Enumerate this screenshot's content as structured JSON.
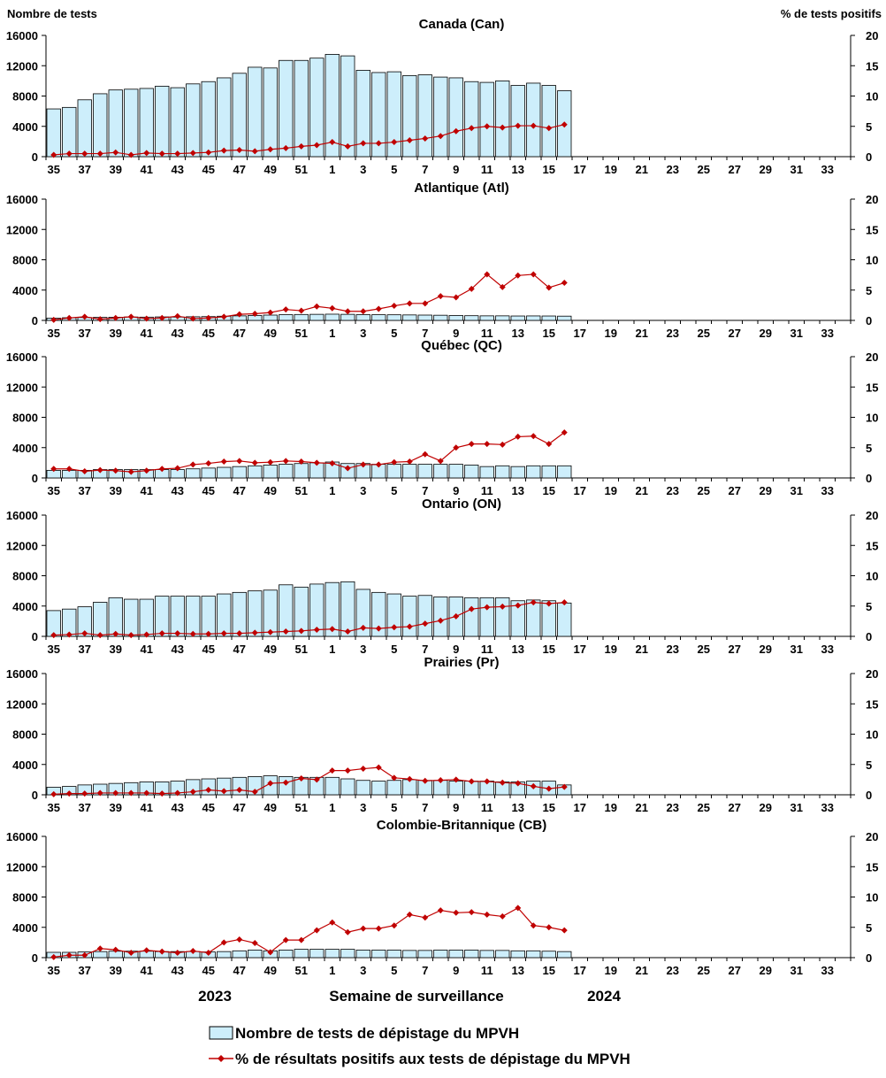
{
  "y_left_label": "Nombre de tests",
  "y_right_label": "% de tests positifs",
  "x_label": "Semaine de surveillance",
  "year_labels": [
    "2023",
    "2024"
  ],
  "legend": {
    "bar": "Nombre de tests de dépistage du MPVH",
    "line": "% de résultats positifs aux tests de dépistage du MPVH"
  },
  "colors": {
    "bar_fill": "#cdeefb",
    "bar_stroke": "#000000",
    "line": "#c00000"
  },
  "chart_data": [
    {
      "type": "bar+line",
      "title": "Canada (Can)",
      "weeks": [
        35,
        36,
        37,
        38,
        39,
        40,
        41,
        42,
        43,
        44,
        45,
        46,
        47,
        48,
        49,
        50,
        51,
        52,
        1,
        2,
        3,
        4,
        5,
        6,
        7,
        8,
        9,
        10,
        11,
        12,
        13,
        14,
        15,
        16,
        17,
        18,
        19,
        20,
        21,
        22,
        23,
        24,
        25,
        26,
        27,
        28,
        29,
        30,
        31,
        32,
        33,
        34
      ],
      "x_tick_labels": [
        "35",
        "37",
        "39",
        "41",
        "43",
        "45",
        "47",
        "49",
        "51",
        "1",
        "3",
        "5",
        "7",
        "9",
        "11",
        "13",
        "15",
        "17",
        "19",
        "21",
        "23",
        "25",
        "27",
        "29",
        "31",
        "33"
      ],
      "ylim_left": [
        0,
        16000
      ],
      "yticks_left": [
        0,
        4000,
        8000,
        12000,
        16000
      ],
      "ylim_right": [
        0,
        20
      ],
      "yticks_right": [
        0,
        5,
        10,
        15,
        20
      ],
      "tests": [
        6300,
        6500,
        7500,
        8300,
        8800,
        8900,
        9000,
        9300,
        9100,
        9600,
        9900,
        10400,
        11000,
        11800,
        11700,
        12700,
        12700,
        13000,
        13500,
        13300,
        11400,
        11100,
        11200,
        10700,
        10800,
        10500,
        10400,
        9900,
        9800,
        10000,
        9400,
        9700,
        9400,
        8700
      ],
      "percent_positive": [
        0.3,
        0.5,
        0.5,
        0.5,
        0.7,
        0.3,
        0.6,
        0.5,
        0.5,
        0.6,
        0.7,
        1.0,
        1.1,
        0.9,
        1.2,
        1.4,
        1.7,
        1.9,
        2.4,
        1.7,
        2.2,
        2.2,
        2.4,
        2.7,
        3.0,
        3.4,
        4.2,
        4.7,
        5.0,
        4.8,
        5.1,
        5.1,
        4.7,
        5.3
      ]
    },
    {
      "type": "bar+line",
      "title": "Atlantique (Atl)",
      "weeks": [
        35,
        36,
        37,
        38,
        39,
        40,
        41,
        42,
        43,
        44,
        45,
        46,
        47,
        48,
        49,
        50,
        51,
        52,
        1,
        2,
        3,
        4,
        5,
        6,
        7,
        8,
        9,
        10,
        11,
        12,
        13,
        14,
        15,
        16,
        17,
        18,
        19,
        20,
        21,
        22,
        23,
        24,
        25,
        26,
        27,
        28,
        29,
        30,
        31,
        32,
        33,
        34
      ],
      "x_tick_labels": [
        "35",
        "37",
        "39",
        "41",
        "43",
        "45",
        "47",
        "49",
        "51",
        "1",
        "3",
        "5",
        "7",
        "9",
        "11",
        "13",
        "15",
        "17",
        "19",
        "21",
        "23",
        "25",
        "27",
        "29",
        "31",
        "33"
      ],
      "ylim_left": [
        0,
        16000
      ],
      "yticks_left": [
        0,
        4000,
        8000,
        12000,
        16000
      ],
      "ylim_right": [
        0,
        20
      ],
      "yticks_right": [
        0,
        5,
        10,
        15,
        20
      ],
      "tests": [
        300,
        350,
        380,
        400,
        420,
        450,
        430,
        460,
        440,
        480,
        500,
        550,
        600,
        650,
        700,
        750,
        780,
        800,
        820,
        800,
        760,
        750,
        740,
        720,
        700,
        680,
        650,
        620,
        600,
        600,
        580,
        590,
        580,
        560
      ],
      "percent_positive": [
        0.1,
        0.4,
        0.6,
        0.2,
        0.4,
        0.6,
        0.3,
        0.4,
        0.7,
        0.3,
        0.4,
        0.6,
        1.0,
        1.1,
        1.3,
        1.8,
        1.6,
        2.3,
        2.0,
        1.5,
        1.5,
        1.9,
        2.4,
        2.8,
        2.8,
        4.0,
        3.8,
        5.2,
        7.6,
        5.5,
        7.4,
        7.6,
        5.4,
        6.2
      ]
    },
    {
      "type": "bar+line",
      "title": "Québec (QC)",
      "weeks": [
        35,
        36,
        37,
        38,
        39,
        40,
        41,
        42,
        43,
        44,
        45,
        46,
        47,
        48,
        49,
        50,
        51,
        52,
        1,
        2,
        3,
        4,
        5,
        6,
        7,
        8,
        9,
        10,
        11,
        12,
        13,
        14,
        15,
        16,
        17,
        18,
        19,
        20,
        21,
        22,
        23,
        24,
        25,
        26,
        27,
        28,
        29,
        30,
        31,
        32,
        33,
        34
      ],
      "x_tick_labels": [
        "35",
        "37",
        "39",
        "41",
        "43",
        "45",
        "47",
        "49",
        "51",
        "1",
        "3",
        "5",
        "7",
        "9",
        "11",
        "13",
        "15",
        "17",
        "19",
        "21",
        "23",
        "25",
        "27",
        "29",
        "31",
        "33"
      ],
      "ylim_left": [
        0,
        16000
      ],
      "yticks_left": [
        0,
        4000,
        8000,
        12000,
        16000
      ],
      "ylim_right": [
        0,
        20
      ],
      "yticks_right": [
        0,
        5,
        10,
        15,
        20
      ],
      "tests": [
        1000,
        1000,
        1000,
        1100,
        1100,
        1100,
        1100,
        1100,
        1100,
        1200,
        1300,
        1400,
        1500,
        1600,
        1700,
        1800,
        1900,
        2000,
        2100,
        1900,
        1900,
        1800,
        1800,
        1800,
        1800,
        1800,
        1800,
        1700,
        1500,
        1600,
        1500,
        1600,
        1600,
        1600
      ],
      "percent_positive": [
        1.5,
        1.5,
        1.1,
        1.3,
        1.2,
        1.0,
        1.2,
        1.5,
        1.6,
        2.2,
        2.4,
        2.7,
        2.8,
        2.5,
        2.6,
        2.8,
        2.7,
        2.5,
        2.4,
        1.6,
        2.2,
        2.2,
        2.6,
        2.7,
        3.9,
        2.8,
        5.0,
        5.6,
        5.6,
        5.5,
        6.8,
        6.9,
        5.6,
        7.5
      ]
    },
    {
      "type": "bar+line",
      "title": "Ontario (ON)",
      "weeks": [
        35,
        36,
        37,
        38,
        39,
        40,
        41,
        42,
        43,
        44,
        45,
        46,
        47,
        48,
        49,
        50,
        51,
        52,
        1,
        2,
        3,
        4,
        5,
        6,
        7,
        8,
        9,
        10,
        11,
        12,
        13,
        14,
        15,
        16,
        17,
        18,
        19,
        20,
        21,
        22,
        23,
        24,
        25,
        26,
        27,
        28,
        29,
        30,
        31,
        32,
        33,
        34
      ],
      "x_tick_labels": [
        "35",
        "37",
        "39",
        "41",
        "43",
        "45",
        "47",
        "49",
        "51",
        "1",
        "3",
        "5",
        "7",
        "9",
        "11",
        "13",
        "15",
        "17",
        "19",
        "21",
        "23",
        "25",
        "27",
        "29",
        "31",
        "33"
      ],
      "ylim_left": [
        0,
        16000
      ],
      "yticks_left": [
        0,
        4000,
        8000,
        12000,
        16000
      ],
      "ylim_right": [
        0,
        20
      ],
      "yticks_right": [
        0,
        5,
        10,
        15,
        20
      ],
      "tests": [
        3400,
        3600,
        3900,
        4500,
        5100,
        4900,
        4900,
        5300,
        5300,
        5300,
        5300,
        5600,
        5800,
        6000,
        6100,
        6800,
        6500,
        6900,
        7100,
        7200,
        6200,
        5800,
        5600,
        5300,
        5400,
        5200,
        5200,
        5100,
        5100,
        5100,
        4700,
        4800,
        4700,
        4400
      ],
      "percent_positive": [
        0.2,
        0.3,
        0.5,
        0.2,
        0.4,
        0.2,
        0.3,
        0.5,
        0.5,
        0.4,
        0.4,
        0.5,
        0.5,
        0.6,
        0.7,
        0.8,
        0.9,
        1.1,
        1.2,
        0.8,
        1.4,
        1.3,
        1.5,
        1.6,
        2.1,
        2.6,
        3.3,
        4.5,
        4.8,
        4.9,
        5.1,
        5.6,
        5.4,
        5.6
      ]
    },
    {
      "type": "bar+line",
      "title": "Prairies (Pr)",
      "weeks": [
        35,
        36,
        37,
        38,
        39,
        40,
        41,
        42,
        43,
        44,
        45,
        46,
        47,
        48,
        49,
        50,
        51,
        52,
        1,
        2,
        3,
        4,
        5,
        6,
        7,
        8,
        9,
        10,
        11,
        12,
        13,
        14,
        15,
        16,
        17,
        18,
        19,
        20,
        21,
        22,
        23,
        24,
        25,
        26,
        27,
        28,
        29,
        30,
        31,
        32,
        33,
        34
      ],
      "x_tick_labels": [
        "35",
        "37",
        "39",
        "41",
        "43",
        "45",
        "47",
        "49",
        "51",
        "1",
        "3",
        "5",
        "7",
        "9",
        "11",
        "13",
        "15",
        "17",
        "19",
        "21",
        "23",
        "25",
        "27",
        "29",
        "31",
        "33"
      ],
      "ylim_left": [
        0,
        16000
      ],
      "yticks_left": [
        0,
        4000,
        8000,
        12000,
        16000
      ],
      "ylim_right": [
        0,
        20
      ],
      "yticks_right": [
        0,
        5,
        10,
        15,
        20
      ],
      "tests": [
        1000,
        1100,
        1300,
        1400,
        1500,
        1600,
        1700,
        1700,
        1800,
        2000,
        2100,
        2200,
        2300,
        2400,
        2500,
        2400,
        2300,
        2300,
        2300,
        2100,
        1900,
        1800,
        1900,
        2000,
        1900,
        1900,
        1800,
        1800,
        1800,
        1700,
        1700,
        1800,
        1800,
        1300
      ],
      "percent_positive": [
        0.1,
        0.2,
        0.2,
        0.3,
        0.3,
        0.3,
        0.3,
        0.2,
        0.3,
        0.5,
        0.8,
        0.6,
        0.8,
        0.5,
        1.9,
        2.0,
        2.7,
        2.5,
        4.0,
        4.0,
        4.3,
        4.5,
        2.8,
        2.6,
        2.3,
        2.4,
        2.5,
        2.2,
        2.2,
        2.0,
        1.9,
        1.4,
        1.0,
        1.3
      ]
    },
    {
      "type": "bar+line",
      "title": "Colombie-Britannique (CB)",
      "weeks": [
        35,
        36,
        37,
        38,
        39,
        40,
        41,
        42,
        43,
        44,
        45,
        46,
        47,
        48,
        49,
        50,
        51,
        52,
        1,
        2,
        3,
        4,
        5,
        6,
        7,
        8,
        9,
        10,
        11,
        12,
        13,
        14,
        15,
        16,
        17,
        18,
        19,
        20,
        21,
        22,
        23,
        24,
        25,
        26,
        27,
        28,
        29,
        30,
        31,
        32,
        33,
        34
      ],
      "x_tick_labels": [
        "35",
        "37",
        "39",
        "41",
        "43",
        "45",
        "47",
        "49",
        "51",
        "1",
        "3",
        "5",
        "7",
        "9",
        "11",
        "13",
        "15",
        "17",
        "19",
        "21",
        "23",
        "25",
        "27",
        "29",
        "31",
        "33"
      ],
      "ylim_left": [
        0,
        16000
      ],
      "yticks_left": [
        0,
        4000,
        8000,
        12000,
        16000
      ],
      "ylim_right": [
        0,
        20
      ],
      "yticks_right": [
        0,
        5,
        10,
        15,
        20
      ],
      "tests": [
        700,
        700,
        750,
        800,
        850,
        850,
        850,
        800,
        800,
        800,
        750,
        800,
        900,
        1000,
        900,
        1000,
        1100,
        1100,
        1100,
        1100,
        1000,
        1000,
        1000,
        950,
        950,
        1000,
        1000,
        1000,
        950,
        950,
        900,
        900,
        850,
        800
      ],
      "percent_positive": [
        0.1,
        0.4,
        0.4,
        1.5,
        1.3,
        0.8,
        1.2,
        1.0,
        0.8,
        1.1,
        0.8,
        2.5,
        3.0,
        2.4,
        0.9,
        2.9,
        2.9,
        4.5,
        5.8,
        4.2,
        4.8,
        4.8,
        5.3,
        7.1,
        6.6,
        7.8,
        7.4,
        7.5,
        7.1,
        6.8,
        8.2,
        5.3,
        5.0,
        4.5
      ]
    }
  ]
}
